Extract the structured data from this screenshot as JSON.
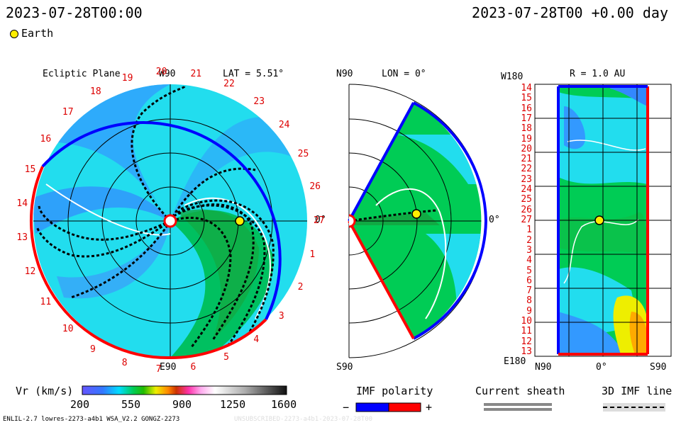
{
  "header": {
    "left_time": "2023-07-28T00:00",
    "right_time": "2023-07-28T00 +0.00 day",
    "legend_earth": "Earth"
  },
  "panel_ecliptic": {
    "title": "Ecliptic Plane",
    "top_label": "W90",
    "lat_label": "LAT = 5.51°",
    "right_label": "0°",
    "bottom_label": "E90",
    "day_labels": [
      "27",
      "1",
      "2",
      "3",
      "4",
      "5",
      "6",
      "7",
      "8",
      "9",
      "10",
      "11",
      "12",
      "13",
      "14",
      "15",
      "16",
      "17",
      "18",
      "19",
      "20",
      "21",
      "22",
      "23",
      "24",
      "25",
      "26"
    ]
  },
  "panel_meridional": {
    "top_label": "N90",
    "lon_label": "LON = 0°",
    "right_label": "0°",
    "bottom_label": "S90"
  },
  "panel_r": {
    "top_left": "W180",
    "title": "R = 1.0 AU",
    "bottom_left": "E180",
    "x_labels": [
      "N90",
      "0°",
      "S90"
    ],
    "y_labels": [
      "14",
      "15",
      "16",
      "17",
      "18",
      "19",
      "20",
      "21",
      "22",
      "23",
      "24",
      "25",
      "26",
      "27",
      "1",
      "2",
      "3",
      "4",
      "5",
      "6",
      "7",
      "8",
      "9",
      "10",
      "11",
      "12",
      "13"
    ]
  },
  "colorbar": {
    "label": "Vr (km/s)",
    "ticks": [
      "200",
      "550",
      "900",
      "1250",
      "1600"
    ],
    "min": 200,
    "max": 1600
  },
  "imf": {
    "title": "IMF polarity",
    "minus": "−",
    "plus": "+",
    "negative_color": "#0000ff",
    "positive_color": "#ff0000"
  },
  "current_sheath": {
    "title": "Current sheath"
  },
  "imf_line": {
    "title": "3D IMF line"
  },
  "footer": {
    "left": "ENLIL-2.7 lowres-2273-a4b1 WSA_V2.2 GONGZ-2273",
    "right": "UNSUBSCRIBED-2273-a4b1-2023-07-28T00"
  }
}
